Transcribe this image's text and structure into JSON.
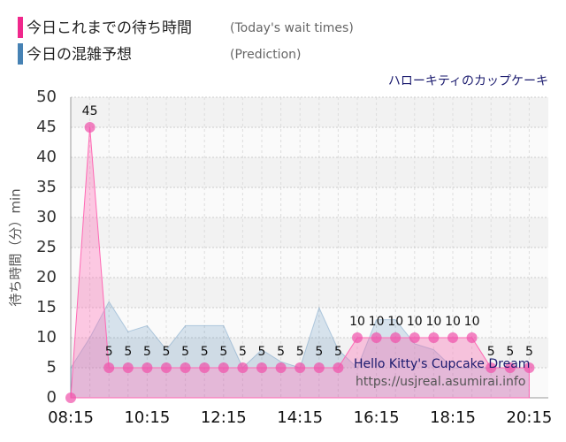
{
  "chart_data": {
    "type": "area-line",
    "subtitle": "ハローキティのカップケーキ",
    "y_label": "待ち時間（分）min",
    "watermark": [
      "Hello Kitty's Cupcake Dream",
      "https://usjreal.asumirai.info"
    ],
    "x": [
      495,
      525,
      555,
      585,
      615,
      645,
      675,
      705,
      735,
      765,
      795,
      825,
      855,
      885,
      915,
      945,
      975,
      1005,
      1035,
      1065,
      1095,
      1125,
      1155,
      1185,
      1215
    ],
    "xlim": [
      495,
      1245
    ],
    "xticks": [
      {
        "value": 495,
        "label": "08:15"
      },
      {
        "value": 615,
        "label": "10:15"
      },
      {
        "value": 735,
        "label": "12:15"
      },
      {
        "value": 855,
        "label": "14:15"
      },
      {
        "value": 975,
        "label": "16:15"
      },
      {
        "value": 1095,
        "label": "18:15"
      },
      {
        "value": 1215,
        "label": "20:15"
      }
    ],
    "ylim": [
      0,
      50
    ],
    "yticks": [
      0,
      5,
      10,
      15,
      20,
      25,
      30,
      35,
      40,
      45,
      50
    ],
    "grid": true,
    "series": [
      {
        "name": "今日これまでの待ち時間",
        "name_en": "(Today's wait times)",
        "color": "#f0288c",
        "values": [
          0,
          45,
          5,
          5,
          5,
          5,
          5,
          5,
          5,
          5,
          5,
          5,
          5,
          5,
          5,
          10,
          10,
          10,
          10,
          10,
          10,
          10,
          5,
          5,
          5
        ]
      },
      {
        "name": "今日の混雑予想",
        "name_en": "(Prediction)",
        "color": "#4682b4",
        "values": [
          5,
          10,
          16,
          11,
          12,
          8,
          12,
          12,
          12,
          5,
          8,
          6,
          5,
          15,
          8,
          5,
          13,
          13,
          9,
          8,
          5,
          5,
          5,
          5,
          5
        ]
      }
    ]
  }
}
